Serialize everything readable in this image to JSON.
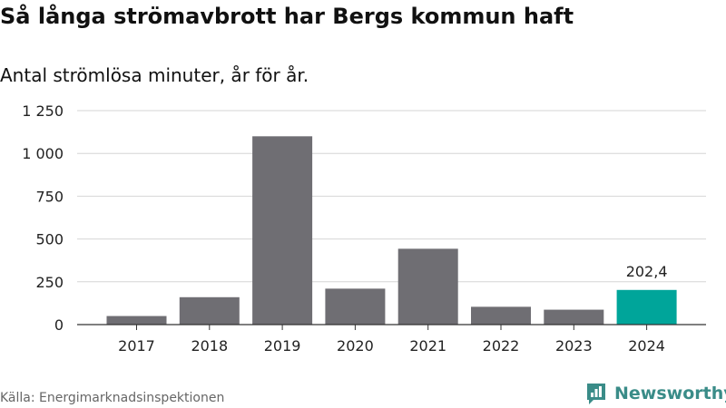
{
  "chart_data": {
    "type": "bar",
    "title": "Så långa strömavbrott har Bergs kommun haft",
    "subtitle": "Antal strömlösa minuter, år för år.",
    "categories": [
      "2017",
      "2018",
      "2019",
      "2020",
      "2021",
      "2022",
      "2023",
      "2024"
    ],
    "values": [
      50,
      160,
      1100,
      210,
      443,
      104,
      87,
      202.4
    ],
    "value_labels": [
      "",
      "",
      "",
      "",
      "",
      "",
      "",
      "202,4"
    ],
    "yticks": [
      0,
      250,
      500,
      750,
      1000,
      1250
    ],
    "ytick_labels": [
      "0",
      "250",
      "500",
      "750",
      "1 000",
      "1 250"
    ],
    "ylim": [
      0,
      1250
    ],
    "grid": true,
    "bar_color": "#6f6e73",
    "highlight_color": "#00a59a",
    "highlight_index": 7
  },
  "footer": {
    "source": "Källa: Energimarknadsinspektionen",
    "brand": "Newsworthy",
    "brand_icon": "newsworthy-logo-icon",
    "brand_color": "#3a8c88"
  }
}
